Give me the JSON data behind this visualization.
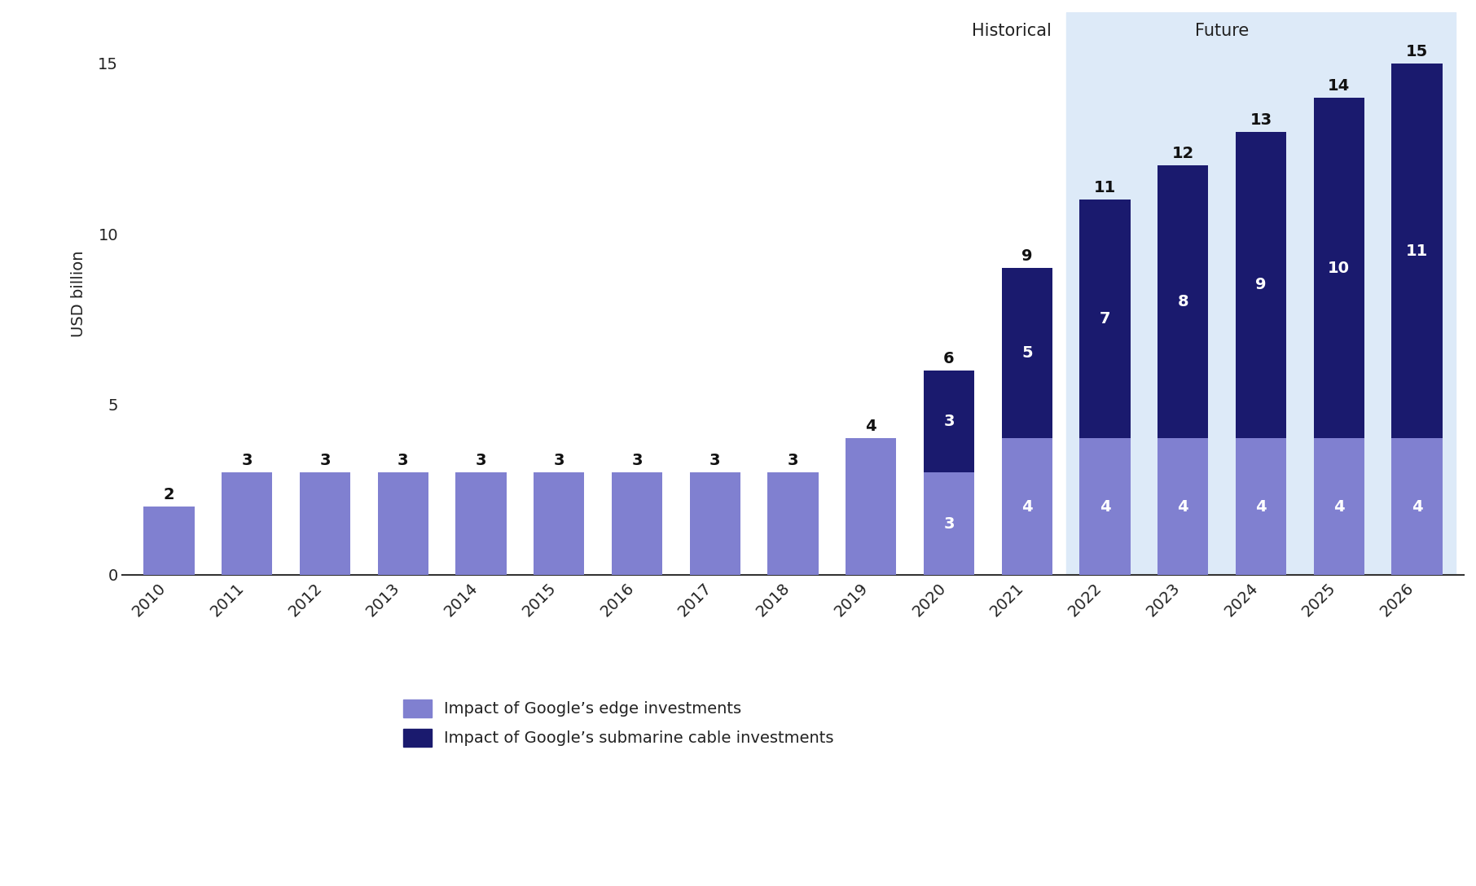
{
  "years": [
    "2010",
    "2011",
    "2012",
    "2013",
    "2014",
    "2015",
    "2016",
    "2017",
    "2018",
    "2019",
    "2020",
    "2021",
    "2022",
    "2023",
    "2024",
    "2025",
    "2026"
  ],
  "edge_values": [
    2,
    3,
    3,
    3,
    3,
    3,
    3,
    3,
    3,
    4,
    3,
    4,
    4,
    4,
    4,
    4,
    4
  ],
  "submarine_values": [
    0,
    0,
    0,
    0,
    0,
    0,
    0,
    0,
    0,
    0,
    3,
    5,
    7,
    8,
    9,
    10,
    11
  ],
  "total_labels": [
    2,
    3,
    3,
    3,
    3,
    3,
    3,
    3,
    3,
    4,
    6,
    9,
    11,
    12,
    13,
    14,
    15
  ],
  "edge_color": "#8080d0",
  "submarine_color": "#1a1a6e",
  "future_bg_color": "#ddeaf8",
  "background_color": "#ffffff",
  "ylabel": "USD billion",
  "ylim": [
    0,
    16.5
  ],
  "yticks": [
    0,
    5,
    10,
    15
  ],
  "historical_label": "Historical",
  "future_label": "Future",
  "legend_edge": "Impact of Google’s edge investments",
  "legend_submarine": "Impact of Google’s submarine cable investments",
  "future_start_year": "2022",
  "label_fontsize": 14,
  "tick_fontsize": 14,
  "legend_fontsize": 14,
  "annotation_fontsize": 14,
  "header_fontsize": 15
}
